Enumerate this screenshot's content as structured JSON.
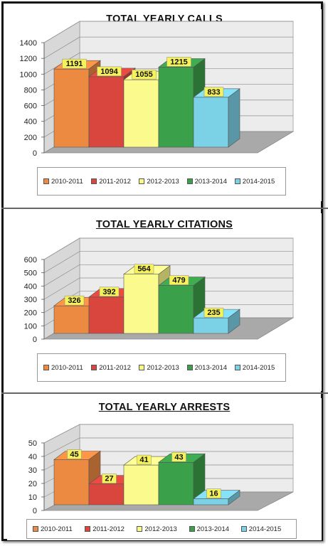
{
  "colors": {
    "2010-2011": "#ec8a42",
    "2011-2012": "#d9463e",
    "2012-2013": "#fbfa8c",
    "2013-2014": "#3aa04a",
    "2014-2015": "#7bd1e6"
  },
  "chart_data": [
    {
      "type": "bar",
      "title": "TOTAL YEARLY CALLS",
      "categories": [
        "2010-2011",
        "2011-2012",
        "2012-2013",
        "2013-2014",
        "2014-2015"
      ],
      "values": [
        1191,
        1094,
        1055,
        1215,
        833
      ],
      "data_labels": [
        "1191",
        "1094",
        "1055",
        "1215",
        "833"
      ],
      "ylim": [
        0,
        1400
      ],
      "yticks": [
        "0",
        "200",
        "400",
        "600",
        "800",
        "1000",
        "1200",
        "1400"
      ],
      "grid": true,
      "legend": "bottom"
    },
    {
      "type": "bar",
      "title": "TOTAL YEARLY CITATIONS",
      "categories": [
        "2010-2011",
        "2011-2012",
        "2012-2013",
        "2013-2014",
        "2014-2015"
      ],
      "values": [
        326,
        392,
        564,
        479,
        235
      ],
      "data_labels": [
        "326",
        "392",
        "564",
        "479",
        "235"
      ],
      "ylim": [
        0,
        600
      ],
      "yticks": [
        "0",
        "100",
        "200",
        "300",
        "400",
        "500",
        "600"
      ],
      "grid": true,
      "legend": "bottom"
    },
    {
      "type": "bar",
      "title": "TOTAL YEARLY ARRESTS",
      "categories": [
        "2010-2011",
        "2011-2012",
        "2012-2013",
        "2013-2014",
        "2014-2015"
      ],
      "values": [
        45,
        27,
        41,
        43,
        16
      ],
      "data_labels": [
        "45",
        "27",
        "41",
        "43",
        "16"
      ],
      "ylim": [
        0,
        50
      ],
      "yticks": [
        "0",
        "10",
        "20",
        "30",
        "40",
        "50"
      ],
      "grid": true,
      "legend": "bottom"
    }
  ]
}
